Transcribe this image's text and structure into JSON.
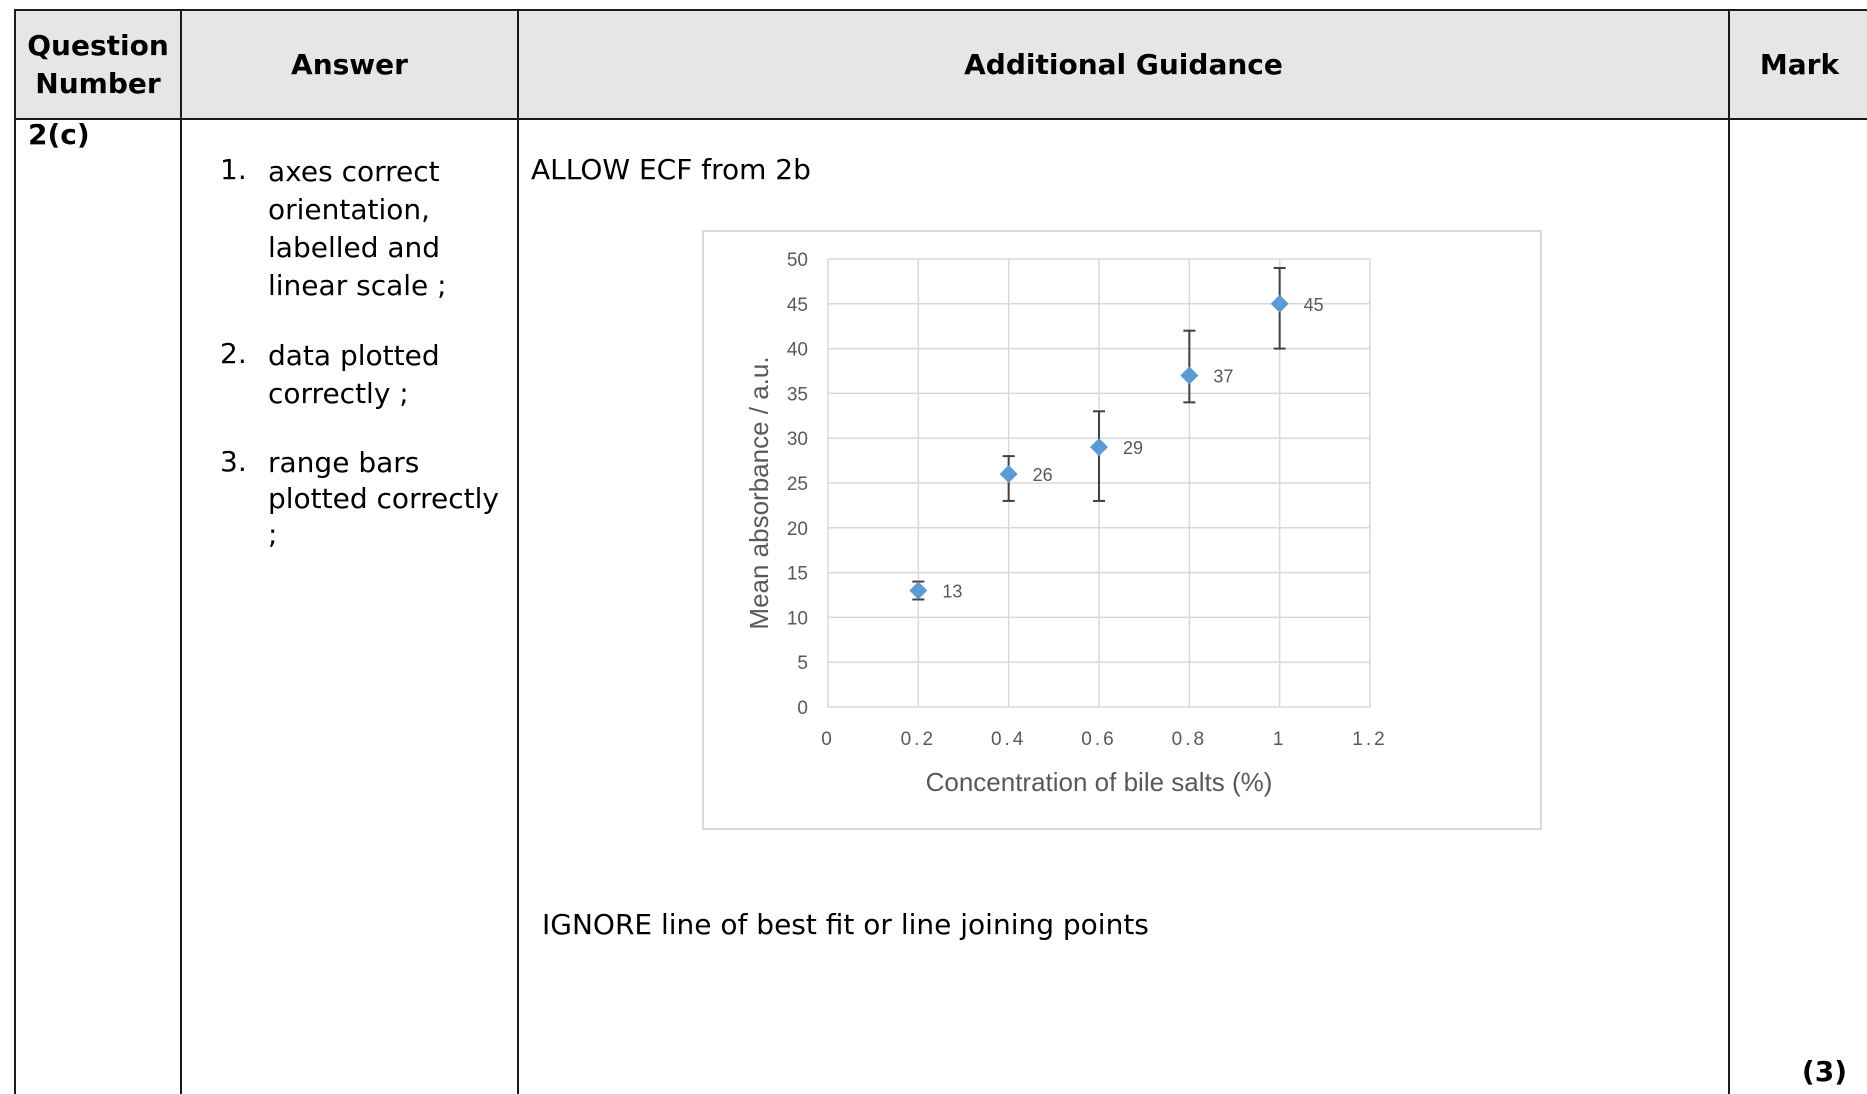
{
  "header": {
    "question_number": "Question\nNumber",
    "answer": "Answer",
    "guidance": "Additional Guidance",
    "mark": "Mark"
  },
  "row": {
    "question": "2(c)",
    "answers": [
      {
        "num": "1.",
        "text": "axes correct orientation, labelled and linear scale ;"
      },
      {
        "num": "2.",
        "text": "data plotted correctly ;"
      },
      {
        "num": "3.",
        "text": "range bars plotted correctly ;"
      }
    ],
    "guidance_top": "ALLOW ECF from 2b",
    "guidance_bottom": "IGNORE line of best fit or line joining points",
    "mark": "(3)"
  },
  "chart_data": {
    "type": "scatter",
    "xlabel": "Concentration of bile salts (%)",
    "ylabel": "Mean absorbance / a.u.",
    "xlim": [
      0,
      1.2
    ],
    "ylim": [
      0,
      50
    ],
    "xticks": [
      "0",
      "0.2",
      "0.4",
      "0.6",
      "0.8",
      "1",
      "1.2"
    ],
    "yticks": [
      "0",
      "5",
      "10",
      "15",
      "20",
      "25",
      "30",
      "35",
      "40",
      "45",
      "50"
    ],
    "grid": true,
    "points": [
      {
        "x": 0.2,
        "y": 13,
        "low": 12,
        "high": 14,
        "label": "13"
      },
      {
        "x": 0.4,
        "y": 26,
        "low": 23,
        "high": 28,
        "label": "26"
      },
      {
        "x": 0.6,
        "y": 29,
        "low": 23,
        "high": 33,
        "label": "29"
      },
      {
        "x": 0.8,
        "y": 37,
        "low": 34,
        "high": 42,
        "label": "37"
      },
      {
        "x": 1.0,
        "y": 45,
        "low": 40,
        "high": 49,
        "label": "45"
      }
    ],
    "colors": {
      "marker": "#5b9bd5",
      "errorbar": "#404040",
      "grid": "#d9d9d9",
      "text": "#595959"
    }
  }
}
